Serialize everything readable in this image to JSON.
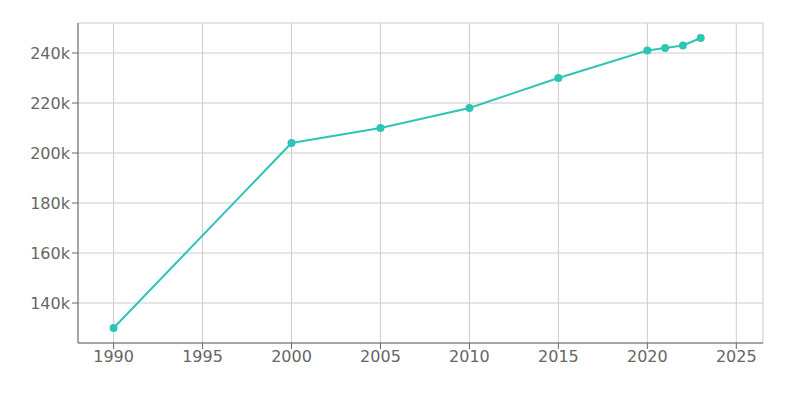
{
  "chart_data": {
    "type": "line",
    "x": [
      1990,
      2000,
      2005,
      2010,
      2015,
      2020,
      2021,
      2022,
      2023
    ],
    "values": [
      130000,
      204000,
      210000,
      218000,
      230000,
      241000,
      242000,
      243000,
      246000
    ],
    "color": "#2ec4b6",
    "marker": "circle",
    "xlim": [
      1988,
      2026.5
    ],
    "ylim": [
      124000,
      252000
    ],
    "xticks": [
      1990,
      1995,
      2000,
      2005,
      2010,
      2015,
      2020,
      2025
    ],
    "yticks": [
      {
        "value": 140000,
        "label": "140k"
      },
      {
        "value": 160000,
        "label": "160k"
      },
      {
        "value": 180000,
        "label": "180k"
      },
      {
        "value": 200000,
        "label": "200k"
      },
      {
        "value": 220000,
        "label": "220k"
      },
      {
        "value": 240000,
        "label": "240k"
      }
    ],
    "grid": true
  }
}
